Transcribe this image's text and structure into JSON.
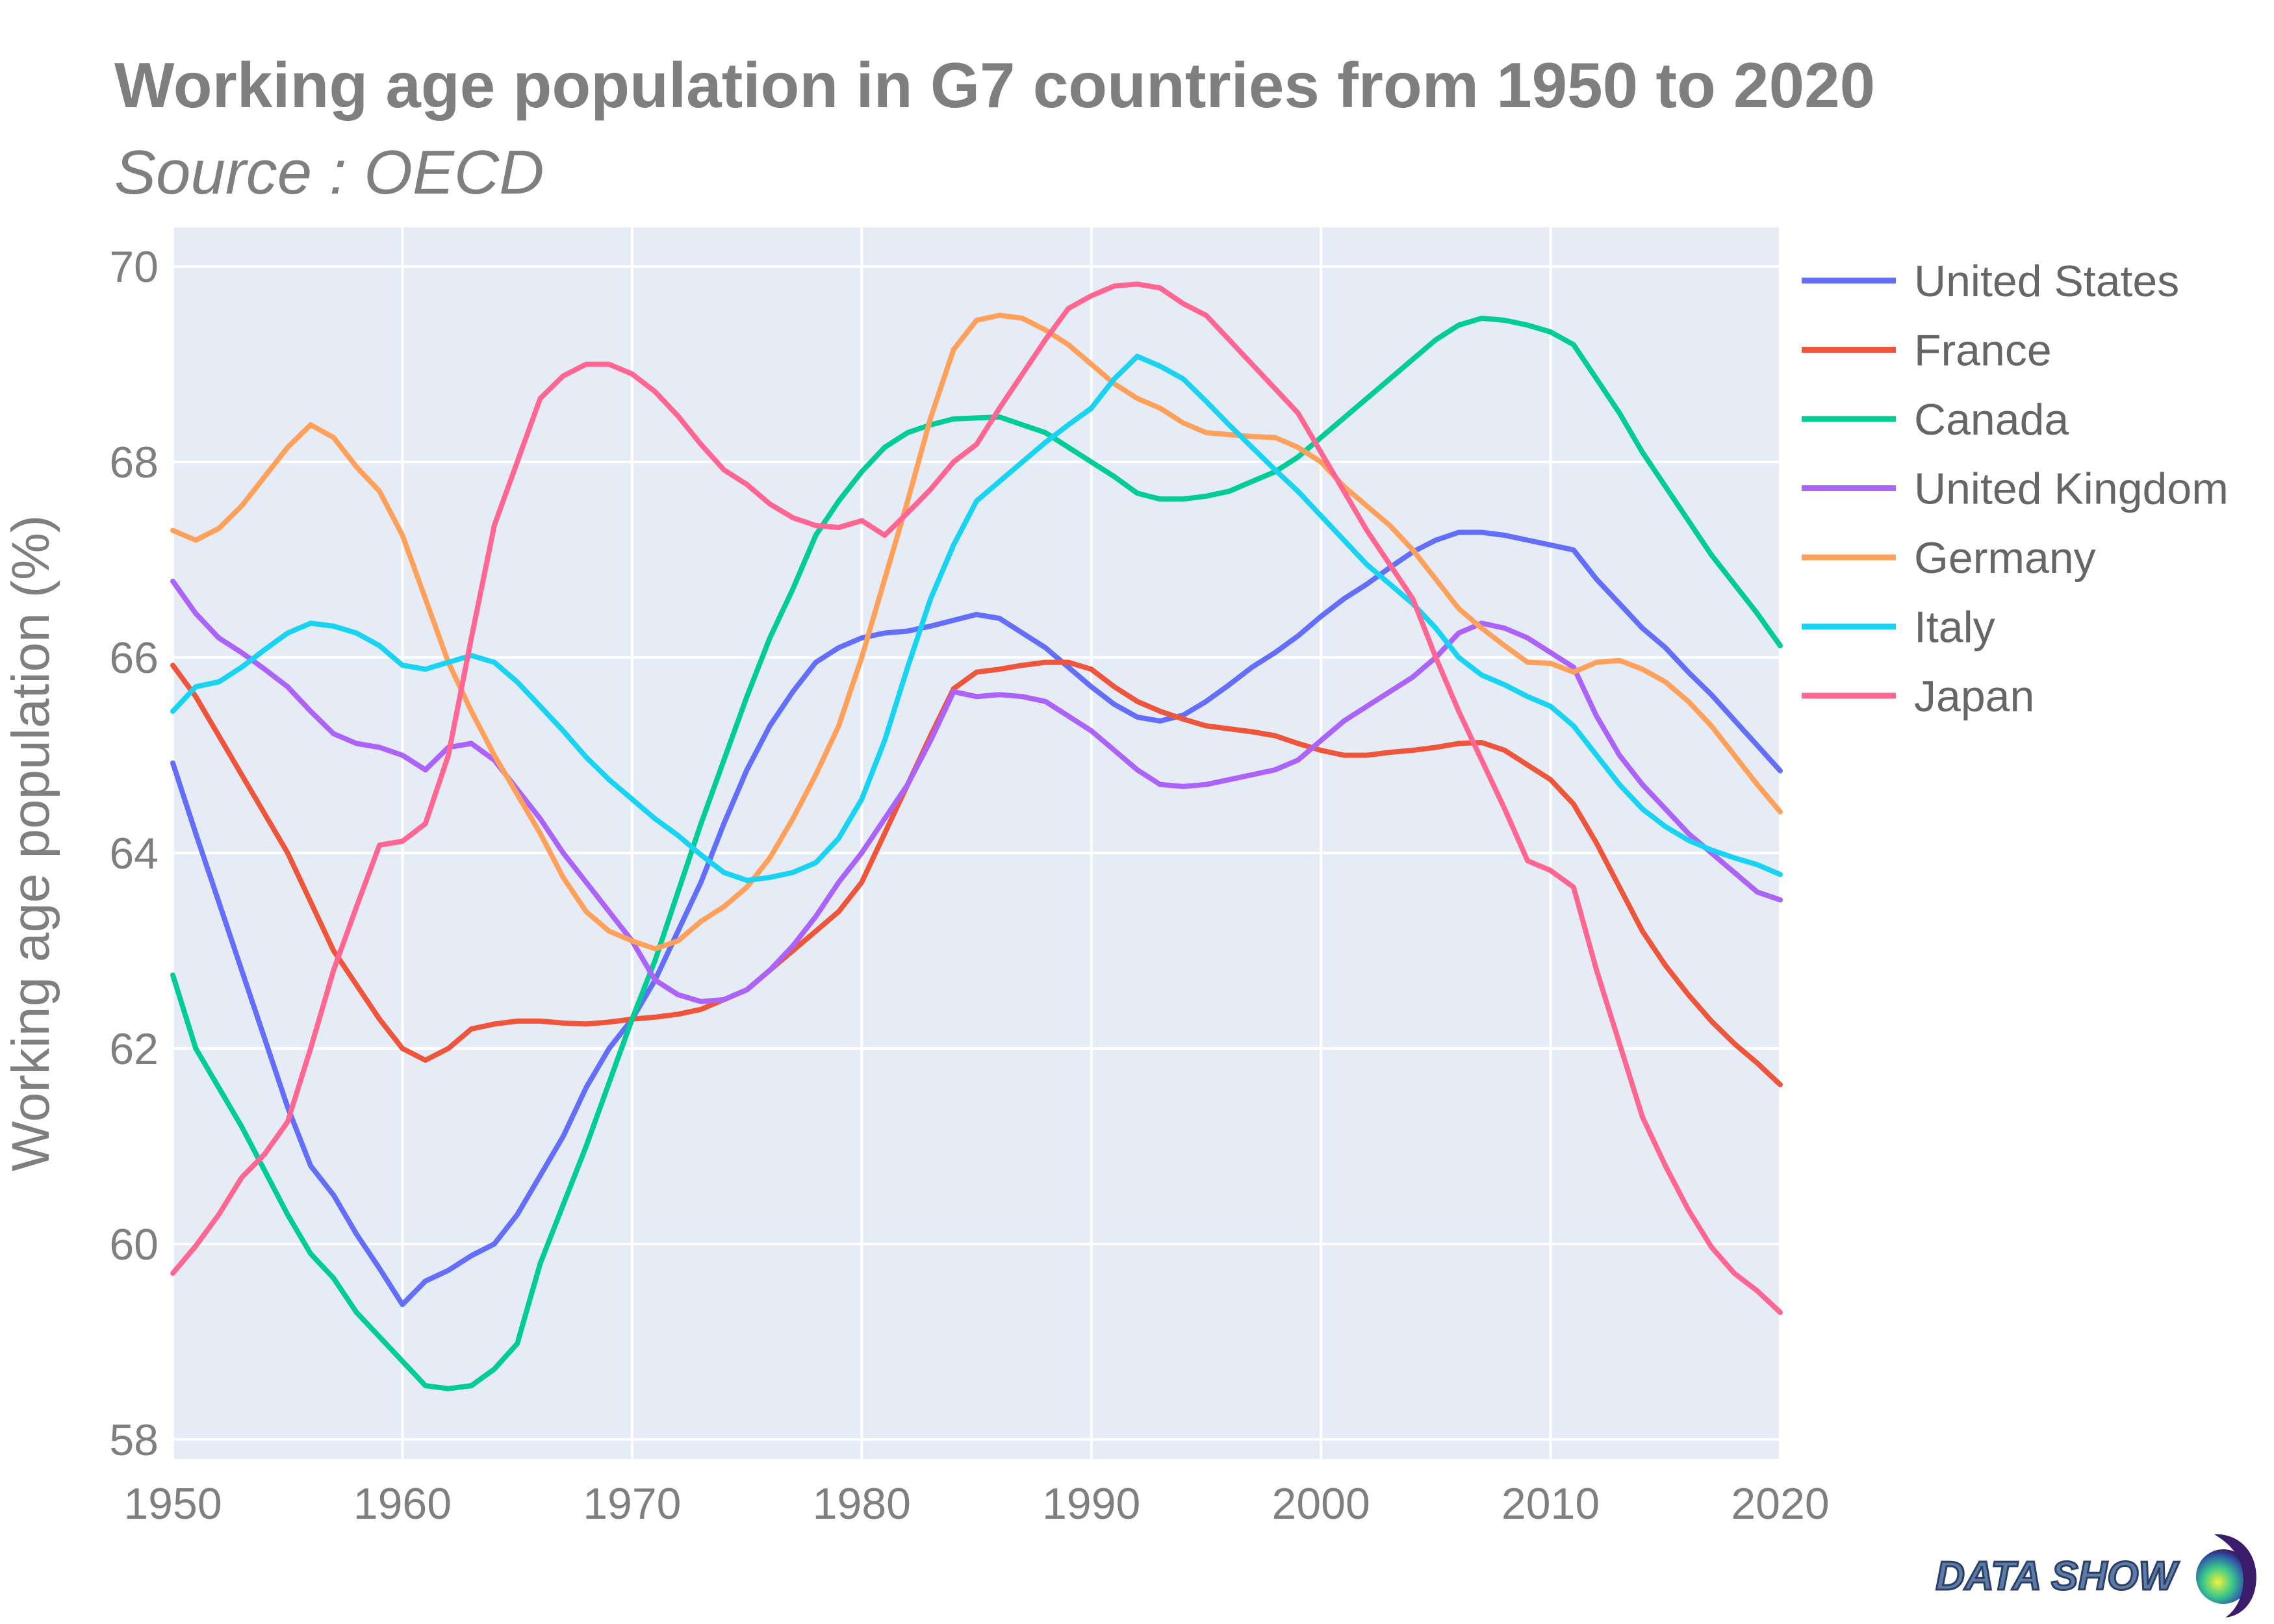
{
  "chart_data": {
    "type": "line",
    "title": "Working age population in G7 countries from 1950 to 2020",
    "subtitle": "Source : OECD",
    "xlabel": "",
    "ylabel": "Working age population (%)",
    "xlim": [
      1950,
      2020
    ],
    "ylim": [
      57.8,
      70.4
    ],
    "x_ticks": [
      1950,
      1960,
      1970,
      1980,
      1990,
      2000,
      2010,
      2020
    ],
    "y_ticks": [
      58,
      60,
      62,
      64,
      66,
      68,
      70
    ],
    "grid": true,
    "background": "#e5ecf6",
    "legend_position": "right",
    "x": [
      1950,
      1951,
      1952,
      1953,
      1954,
      1955,
      1956,
      1957,
      1958,
      1959,
      1960,
      1961,
      1962,
      1963,
      1964,
      1965,
      1966,
      1967,
      1968,
      1969,
      1970,
      1971,
      1972,
      1973,
      1974,
      1975,
      1976,
      1977,
      1978,
      1979,
      1980,
      1981,
      1982,
      1983,
      1984,
      1985,
      1986,
      1987,
      1988,
      1989,
      1990,
      1991,
      1992,
      1993,
      1994,
      1995,
      1996,
      1997,
      1998,
      1999,
      2000,
      2001,
      2002,
      2003,
      2004,
      2005,
      2006,
      2007,
      2008,
      2009,
      2010,
      2011,
      2012,
      2013,
      2014,
      2015,
      2016,
      2017,
      2018,
      2019,
      2020
    ],
    "series": [
      {
        "name": "United States",
        "color": "#636efa",
        "values": [
          64.92,
          64.2,
          63.5,
          62.8,
          62.1,
          61.4,
          60.8,
          60.5,
          60.1,
          59.75,
          59.38,
          59.62,
          59.73,
          59.88,
          60.0,
          60.3,
          60.7,
          61.1,
          61.6,
          62.0,
          62.3,
          62.7,
          63.2,
          63.7,
          64.3,
          64.85,
          65.3,
          65.65,
          65.95,
          66.1,
          66.2,
          66.25,
          66.27,
          66.32,
          66.38,
          66.44,
          66.4,
          66.25,
          66.1,
          65.9,
          65.7,
          65.52,
          65.39,
          65.35,
          65.41,
          65.55,
          65.72,
          65.9,
          66.05,
          66.22,
          66.42,
          66.6,
          66.75,
          66.92,
          67.08,
          67.2,
          67.28,
          67.28,
          67.25,
          67.2,
          67.15,
          67.1,
          66.8,
          66.55,
          66.3,
          66.1,
          65.85,
          65.62,
          65.36,
          65.1,
          64.84
        ]
      },
      {
        "name": "France",
        "color": "#ef553b",
        "values": [
          65.92,
          65.6,
          65.2,
          64.8,
          64.4,
          64.0,
          63.5,
          63.0,
          62.65,
          62.3,
          62.0,
          61.88,
          62.0,
          62.2,
          62.25,
          62.28,
          62.28,
          62.26,
          62.25,
          62.27,
          62.3,
          62.32,
          62.35,
          62.4,
          62.5,
          62.6,
          62.8,
          63.0,
          63.2,
          63.4,
          63.7,
          64.2,
          64.7,
          65.2,
          65.68,
          65.85,
          65.88,
          65.92,
          65.95,
          65.95,
          65.88,
          65.7,
          65.55,
          65.45,
          65.37,
          65.3,
          65.27,
          65.24,
          65.2,
          65.12,
          65.05,
          65.0,
          65.0,
          65.03,
          65.05,
          65.08,
          65.12,
          65.13,
          65.05,
          64.9,
          64.75,
          64.5,
          64.1,
          63.65,
          63.2,
          62.85,
          62.55,
          62.28,
          62.05,
          61.85,
          61.63
        ]
      },
      {
        "name": "Canada",
        "color": "#00cc96",
        "values": [
          62.75,
          62.0,
          61.6,
          61.2,
          60.75,
          60.3,
          59.9,
          59.65,
          59.3,
          59.05,
          58.8,
          58.55,
          58.52,
          58.55,
          58.72,
          58.98,
          59.8,
          60.4,
          61.0,
          61.65,
          62.3,
          62.9,
          63.6,
          64.3,
          64.95,
          65.6,
          66.2,
          66.7,
          67.25,
          67.6,
          67.9,
          68.15,
          68.3,
          68.38,
          68.44,
          68.45,
          68.46,
          68.38,
          68.3,
          68.15,
          68.0,
          67.85,
          67.68,
          67.62,
          67.62,
          67.65,
          67.7,
          67.8,
          67.9,
          68.05,
          68.25,
          68.45,
          68.65,
          68.85,
          69.05,
          69.25,
          69.4,
          69.47,
          69.45,
          69.4,
          69.33,
          69.2,
          68.85,
          68.5,
          68.1,
          67.75,
          67.4,
          67.05,
          66.75,
          66.45,
          66.12
        ]
      },
      {
        "name": "United Kingdom",
        "color": "#ab63fa",
        "values": [
          66.78,
          66.45,
          66.2,
          66.05,
          65.88,
          65.7,
          65.45,
          65.22,
          65.12,
          65.08,
          65.0,
          64.85,
          65.08,
          65.12,
          64.95,
          64.65,
          64.35,
          64.0,
          63.7,
          63.4,
          63.1,
          62.7,
          62.55,
          62.48,
          62.5,
          62.6,
          62.8,
          63.05,
          63.35,
          63.7,
          64.0,
          64.35,
          64.7,
          65.15,
          65.65,
          65.6,
          65.62,
          65.6,
          65.55,
          65.4,
          65.25,
          65.05,
          64.85,
          64.7,
          64.68,
          64.7,
          64.75,
          64.8,
          64.85,
          64.95,
          65.15,
          65.35,
          65.5,
          65.65,
          65.8,
          66.0,
          66.25,
          66.35,
          66.3,
          66.2,
          66.05,
          65.9,
          65.4,
          65.0,
          64.7,
          64.45,
          64.2,
          64.0,
          63.8,
          63.6,
          63.52
        ]
      },
      {
        "name": "Germany",
        "color": "#ffa15a",
        "values": [
          67.3,
          67.2,
          67.32,
          67.55,
          67.85,
          68.15,
          68.38,
          68.25,
          67.95,
          67.7,
          67.25,
          66.6,
          65.95,
          65.45,
          65.0,
          64.6,
          64.2,
          63.75,
          63.4,
          63.2,
          63.1,
          63.02,
          63.1,
          63.3,
          63.45,
          63.65,
          63.95,
          64.35,
          64.8,
          65.3,
          66.0,
          66.8,
          67.6,
          68.45,
          69.15,
          69.45,
          69.5,
          69.47,
          69.35,
          69.2,
          69.0,
          68.8,
          68.65,
          68.55,
          68.4,
          68.3,
          68.28,
          68.26,
          68.25,
          68.15,
          68.0,
          67.75,
          67.55,
          67.35,
          67.1,
          66.8,
          66.5,
          66.3,
          66.12,
          65.95,
          65.94,
          65.85,
          65.95,
          65.97,
          65.88,
          65.75,
          65.55,
          65.3,
          65.0,
          64.7,
          64.42
        ]
      },
      {
        "name": "Italy",
        "color": "#19d3f3",
        "values": [
          65.45,
          65.7,
          65.75,
          65.9,
          66.08,
          66.25,
          66.35,
          66.32,
          66.25,
          66.12,
          65.92,
          65.88,
          65.95,
          66.02,
          65.95,
          65.75,
          65.5,
          65.25,
          64.98,
          64.75,
          64.55,
          64.35,
          64.18,
          63.98,
          63.8,
          63.72,
          63.75,
          63.8,
          63.9,
          64.15,
          64.55,
          65.15,
          65.9,
          66.6,
          67.15,
          67.6,
          67.8,
          68.0,
          68.2,
          68.38,
          68.55,
          68.85,
          69.08,
          68.98,
          68.85,
          68.62,
          68.38,
          68.15,
          67.92,
          67.7,
          67.45,
          67.2,
          66.95,
          66.75,
          66.55,
          66.3,
          66.0,
          65.82,
          65.72,
          65.6,
          65.5,
          65.3,
          65.0,
          64.7,
          64.45,
          64.27,
          64.13,
          64.03,
          63.95,
          63.88,
          63.78
        ]
      },
      {
        "name": "Japan",
        "color": "#ff6692",
        "values": [
          59.7,
          59.98,
          60.3,
          60.68,
          60.92,
          61.25,
          62.0,
          62.8,
          63.45,
          64.08,
          64.12,
          64.3,
          65.0,
          66.2,
          67.35,
          68.0,
          68.65,
          68.88,
          69.0,
          69.0,
          68.9,
          68.72,
          68.47,
          68.18,
          67.92,
          67.77,
          67.57,
          67.43,
          67.35,
          67.33,
          67.4,
          67.25,
          67.48,
          67.72,
          68.0,
          68.18,
          68.55,
          68.9,
          69.25,
          69.57,
          69.7,
          69.8,
          69.82,
          69.78,
          69.62,
          69.5,
          69.25,
          69.0,
          68.75,
          68.5,
          68.1,
          67.7,
          67.3,
          66.95,
          66.6,
          66.0,
          65.45,
          64.95,
          64.45,
          63.92,
          63.82,
          63.65,
          62.8,
          62.05,
          61.3,
          60.8,
          60.35,
          59.97,
          59.7,
          59.52,
          59.3
        ]
      }
    ]
  },
  "logo": {
    "text": "DATA SHOW"
  }
}
